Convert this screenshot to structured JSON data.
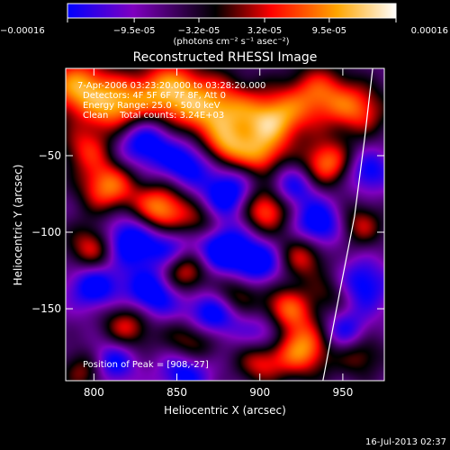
{
  "chart_data": {
    "type": "heatmap",
    "title": "Reconstructed RHESSI Image",
    "xlabel": "Heliocentric X (arcsec)",
    "ylabel": "Heliocentric Y (arcsec)",
    "xlim": [
      783,
      975
    ],
    "ylim": [
      -197,
      7
    ],
    "xticks": [
      800,
      850,
      900,
      950
    ],
    "yticks": [
      -50,
      -100,
      -150
    ],
    "xtick_labels": [
      "800",
      "850",
      "900",
      "950"
    ],
    "ytick_labels": [
      "-50",
      "-100",
      "-150"
    ],
    "colorbar": {
      "range": [
        -0.00016,
        0.00016
      ],
      "tick_values": [
        -0.00016,
        -9.5e-05,
        -3.2e-05,
        3.2e-05,
        9.5e-05,
        0.00016
      ],
      "tick_labels": [
        "-0.00016",
        "-9.5e-05",
        "-3.2e-05",
        "3.2e-05",
        "9.5e-05",
        "0.00016"
      ],
      "unit_label": "(photons cm⁻² s⁻¹ asec⁻²)",
      "colors": [
        "#0000ff",
        "#7f00c0",
        "#000000",
        "#ff0000",
        "#ffa500",
        "#ffffff"
      ]
    },
    "annotations": [
      "7-Apr-2006 03:23:20.000 to 03:28:20.000",
      "Detectors: 4F 5F 6F 7F 8F, Att 0",
      "Energy Range: 25.0 - 50.0 keV",
      "Clean    Total counts: 3.24E+03"
    ],
    "peak_label": "Position of Peak = [908,-27]",
    "peak": [
      908,
      -27
    ],
    "limb_curve": [
      [
        968,
        7
      ],
      [
        963,
        -40
      ],
      [
        957,
        -90
      ],
      [
        948,
        -140
      ],
      [
        938,
        -197
      ]
    ],
    "sources": [
      [
        790,
        -5,
        1,
        14
      ],
      [
        815,
        -18,
        0.9,
        13
      ],
      [
        845,
        -8,
        1,
        15
      ],
      [
        875,
        -22,
        1,
        16
      ],
      [
        908,
        -27,
        1,
        13
      ],
      [
        935,
        -10,
        0.8,
        14
      ],
      [
        960,
        -20,
        0.7,
        12
      ],
      [
        900,
        -50,
        0.7,
        10
      ],
      [
        880,
        -45,
        0.6,
        9
      ],
      [
        940,
        -55,
        0.9,
        11
      ],
      [
        795,
        -45,
        0.6,
        11
      ],
      [
        808,
        -70,
        0.9,
        12
      ],
      [
        840,
        -85,
        1,
        12
      ],
      [
        865,
        -95,
        0.6,
        10
      ],
      [
        903,
        -85,
        0.9,
        11
      ],
      [
        925,
        -115,
        0.7,
        11
      ],
      [
        960,
        -95,
        0.6,
        10
      ],
      [
        800,
        -110,
        0.8,
        11
      ],
      [
        855,
        -125,
        0.9,
        11
      ],
      [
        885,
        -140,
        0.6,
        10
      ],
      [
        915,
        -150,
        0.8,
        11
      ],
      [
        945,
        -140,
        0.5,
        10
      ],
      [
        820,
        -160,
        0.7,
        11
      ],
      [
        860,
        -170,
        0.8,
        12
      ],
      [
        900,
        -185,
        0.6,
        10
      ],
      [
        925,
        -175,
        1,
        13
      ],
      [
        795,
        -190,
        0.6,
        10
      ],
      [
        960,
        -180,
        0.5,
        10
      ]
    ],
    "sinks": [
      [
        830,
        -40,
        -0.8,
        12
      ],
      [
        855,
        -55,
        -0.7,
        11
      ],
      [
        820,
        -105,
        -0.9,
        12
      ],
      [
        845,
        -110,
        -0.6,
        10
      ],
      [
        875,
        -110,
        -0.9,
        13
      ],
      [
        900,
        -120,
        -0.7,
        11
      ],
      [
        935,
        -95,
        -0.8,
        11
      ],
      [
        960,
        -135,
        -0.7,
        12
      ],
      [
        800,
        -135,
        -0.7,
        11
      ],
      [
        835,
        -140,
        -0.8,
        12
      ],
      [
        870,
        -155,
        -0.9,
        12
      ],
      [
        950,
        -165,
        -0.6,
        10
      ],
      [
        880,
        -75,
        -0.8,
        11
      ],
      [
        920,
        -70,
        -0.6,
        10
      ],
      [
        855,
        -190,
        -0.7,
        11
      ],
      [
        810,
        -185,
        -0.7,
        10
      ],
      [
        965,
        -60,
        -0.6,
        10
      ],
      [
        905,
        -165,
        -0.6,
        10
      ]
    ]
  },
  "footer": {
    "timestamp": "16-Jul-2013 02:37"
  }
}
